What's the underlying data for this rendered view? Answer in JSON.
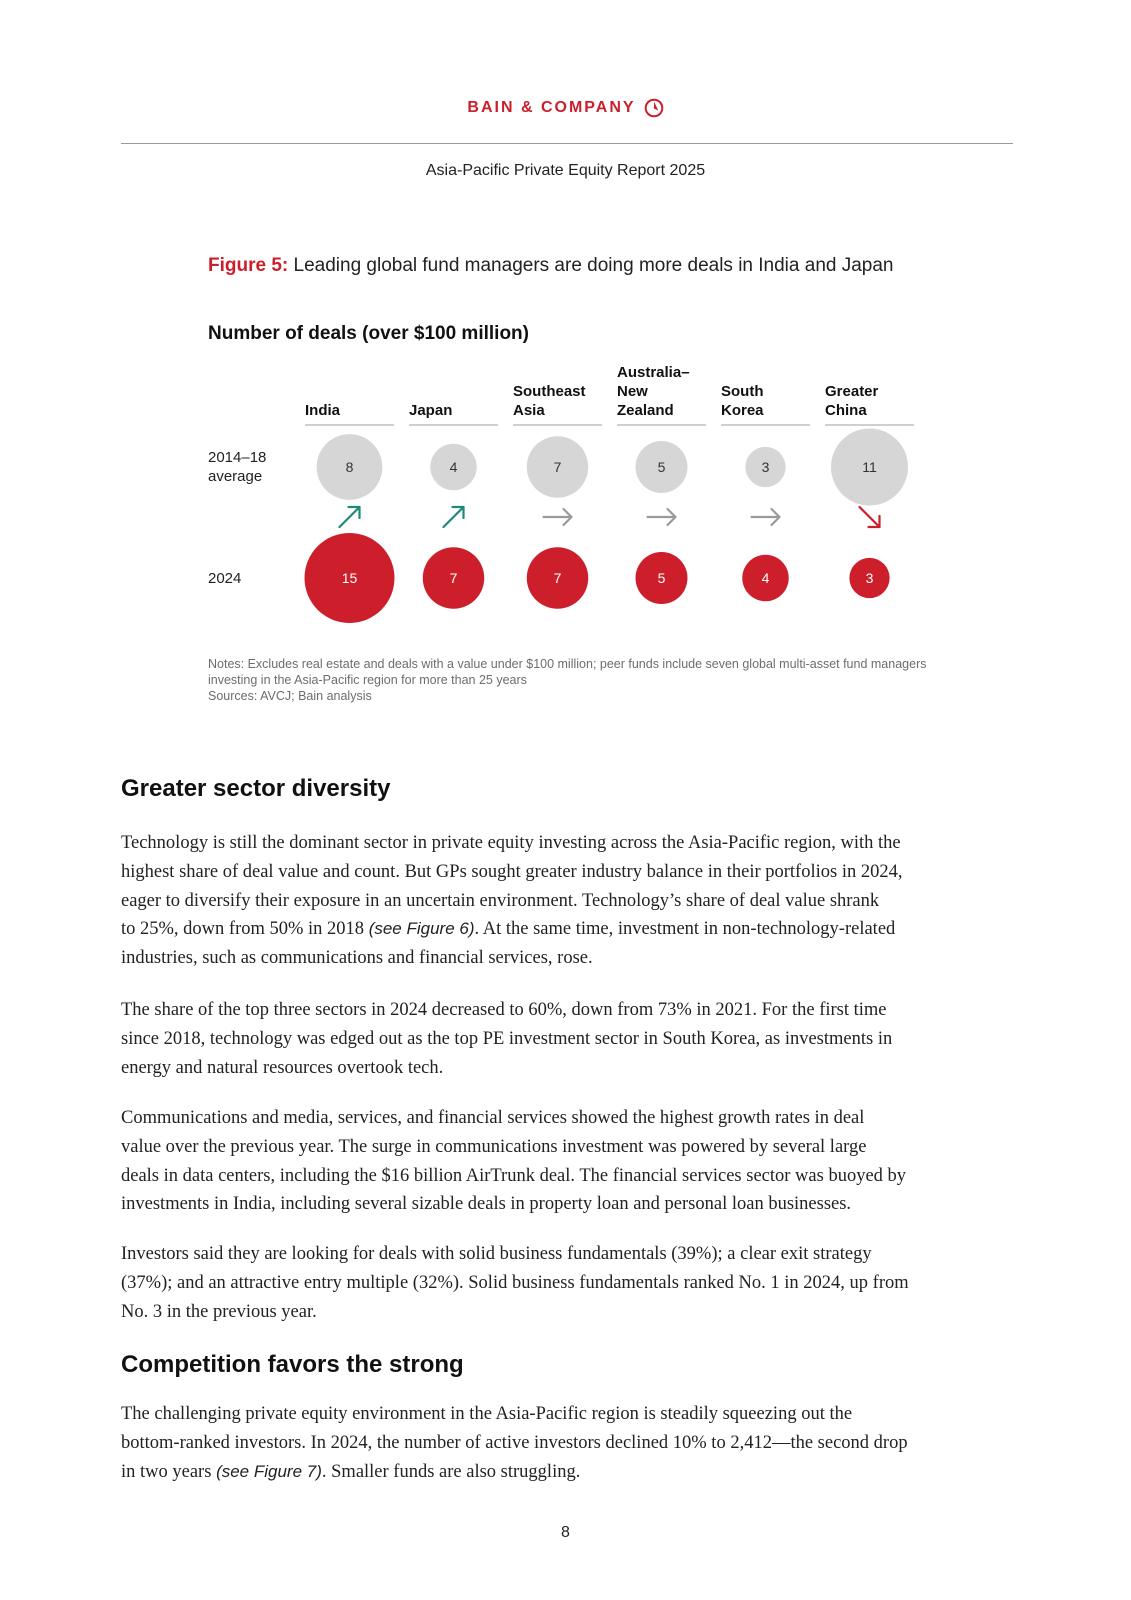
{
  "header": {
    "brand": "BAIN & COMPANY",
    "report_title": "Asia-Pacific Private Equity Report 2025"
  },
  "figure": {
    "label": "Figure 5:",
    "title": "Leading global fund managers are doing more deals in India and Japan",
    "notes": "Notes: Excludes real estate and deals with a value under $100 million; peer funds include seven global multi-asset fund managers investing in the Asia-Pacific region for more than 25 years",
    "sources": "Sources: AVCJ; Bain analysis"
  },
  "chart_data": {
    "type": "bubble",
    "title": "Number of deals (over $100 million)",
    "categories": [
      [
        "India"
      ],
      [
        "Japan"
      ],
      [
        "Southeast",
        "Asia"
      ],
      [
        "Australia–",
        "New",
        "Zealand"
      ],
      [
        "South",
        "Korea"
      ],
      [
        "Greater",
        "China"
      ]
    ],
    "row_labels": [
      [
        "2014–18",
        "average"
      ],
      [
        "2024"
      ]
    ],
    "series": [
      {
        "name": "2014–18 average",
        "values": [
          8,
          4,
          7,
          5,
          3,
          11
        ],
        "color": "#d6d6d6"
      },
      {
        "name": "2024",
        "values": [
          15,
          7,
          7,
          5,
          4,
          3
        ],
        "color": "#cc1f2b"
      }
    ],
    "trend": [
      "up",
      "up",
      "flat",
      "flat",
      "flat",
      "down"
    ],
    "trend_colors": {
      "up": "#1f8a7a",
      "flat": "#9a9a9a",
      "down": "#cc1f2b"
    }
  },
  "sections": [
    {
      "heading": "Greater sector diversity",
      "paragraphs": [
        {
          "lines": [
            [
              {
                "t": "Technology is still the dominant sector in private equity investing across the Asia-Pacific region, with the"
              }
            ],
            [
              {
                "t": "highest share of deal value and count. But GPs sought greater industry balance in their portfolios in 2024,"
              }
            ],
            [
              {
                "t": "eager to diversify their exposure in an uncertain environment. Technology’s share of deal value shrank"
              }
            ],
            [
              {
                "t": "to 25%, down from 50% in 2018 "
              },
              {
                "t": "(see Figure 6)",
                "i": true
              },
              {
                "t": ". At the same time, investment in non-technology-related"
              }
            ],
            [
              {
                "t": "industries, such as communications and financial services, rose."
              }
            ]
          ]
        },
        {
          "lines": [
            [
              {
                "t": "The share of the top three sectors in 2024 decreased to 60%, down from 73% in 2021. For the first time"
              }
            ],
            [
              {
                "t": "since 2018, technology was edged out as the top PE investment sector in South Korea, as investments in"
              }
            ],
            [
              {
                "t": "energy and natural resources overtook tech."
              }
            ]
          ]
        },
        {
          "lines": [
            [
              {
                "t": "Communications and media, services, and financial services showed the highest growth rates in deal"
              }
            ],
            [
              {
                "t": "value over the previous year. The surge in communications investment was powered by several large"
              }
            ],
            [
              {
                "t": "deals in data centers, including the $16 billion AirTrunk deal. The financial services sector was buoyed by"
              }
            ],
            [
              {
                "t": "investments in India, including several sizable deals in property loan and personal loan businesses."
              }
            ]
          ]
        },
        {
          "lines": [
            [
              {
                "t": "Investors said they are looking for deals with solid business fundamentals (39%); a clear exit strategy"
              }
            ],
            [
              {
                "t": "(37%); and an attractive entry multiple (32%). Solid business fundamentals ranked No. 1 in 2024, up from"
              }
            ],
            [
              {
                "t": "No. 3 in the previous year."
              }
            ]
          ]
        }
      ]
    },
    {
      "heading": "Competition favors the strong",
      "paragraphs": [
        {
          "lines": [
            [
              {
                "t": "The challenging private equity environment in the Asia-Pacific region is steadily squeezing out the"
              }
            ],
            [
              {
                "t": "bottom-ranked investors. In 2024, the number of active investors declined 10% to 2,412—the second drop"
              }
            ],
            [
              {
                "t": "in two years "
              },
              {
                "t": "(see Figure 7)",
                "i": true
              },
              {
                "t": ". Smaller funds are also struggling."
              }
            ]
          ]
        }
      ]
    }
  ],
  "page_number": "8"
}
